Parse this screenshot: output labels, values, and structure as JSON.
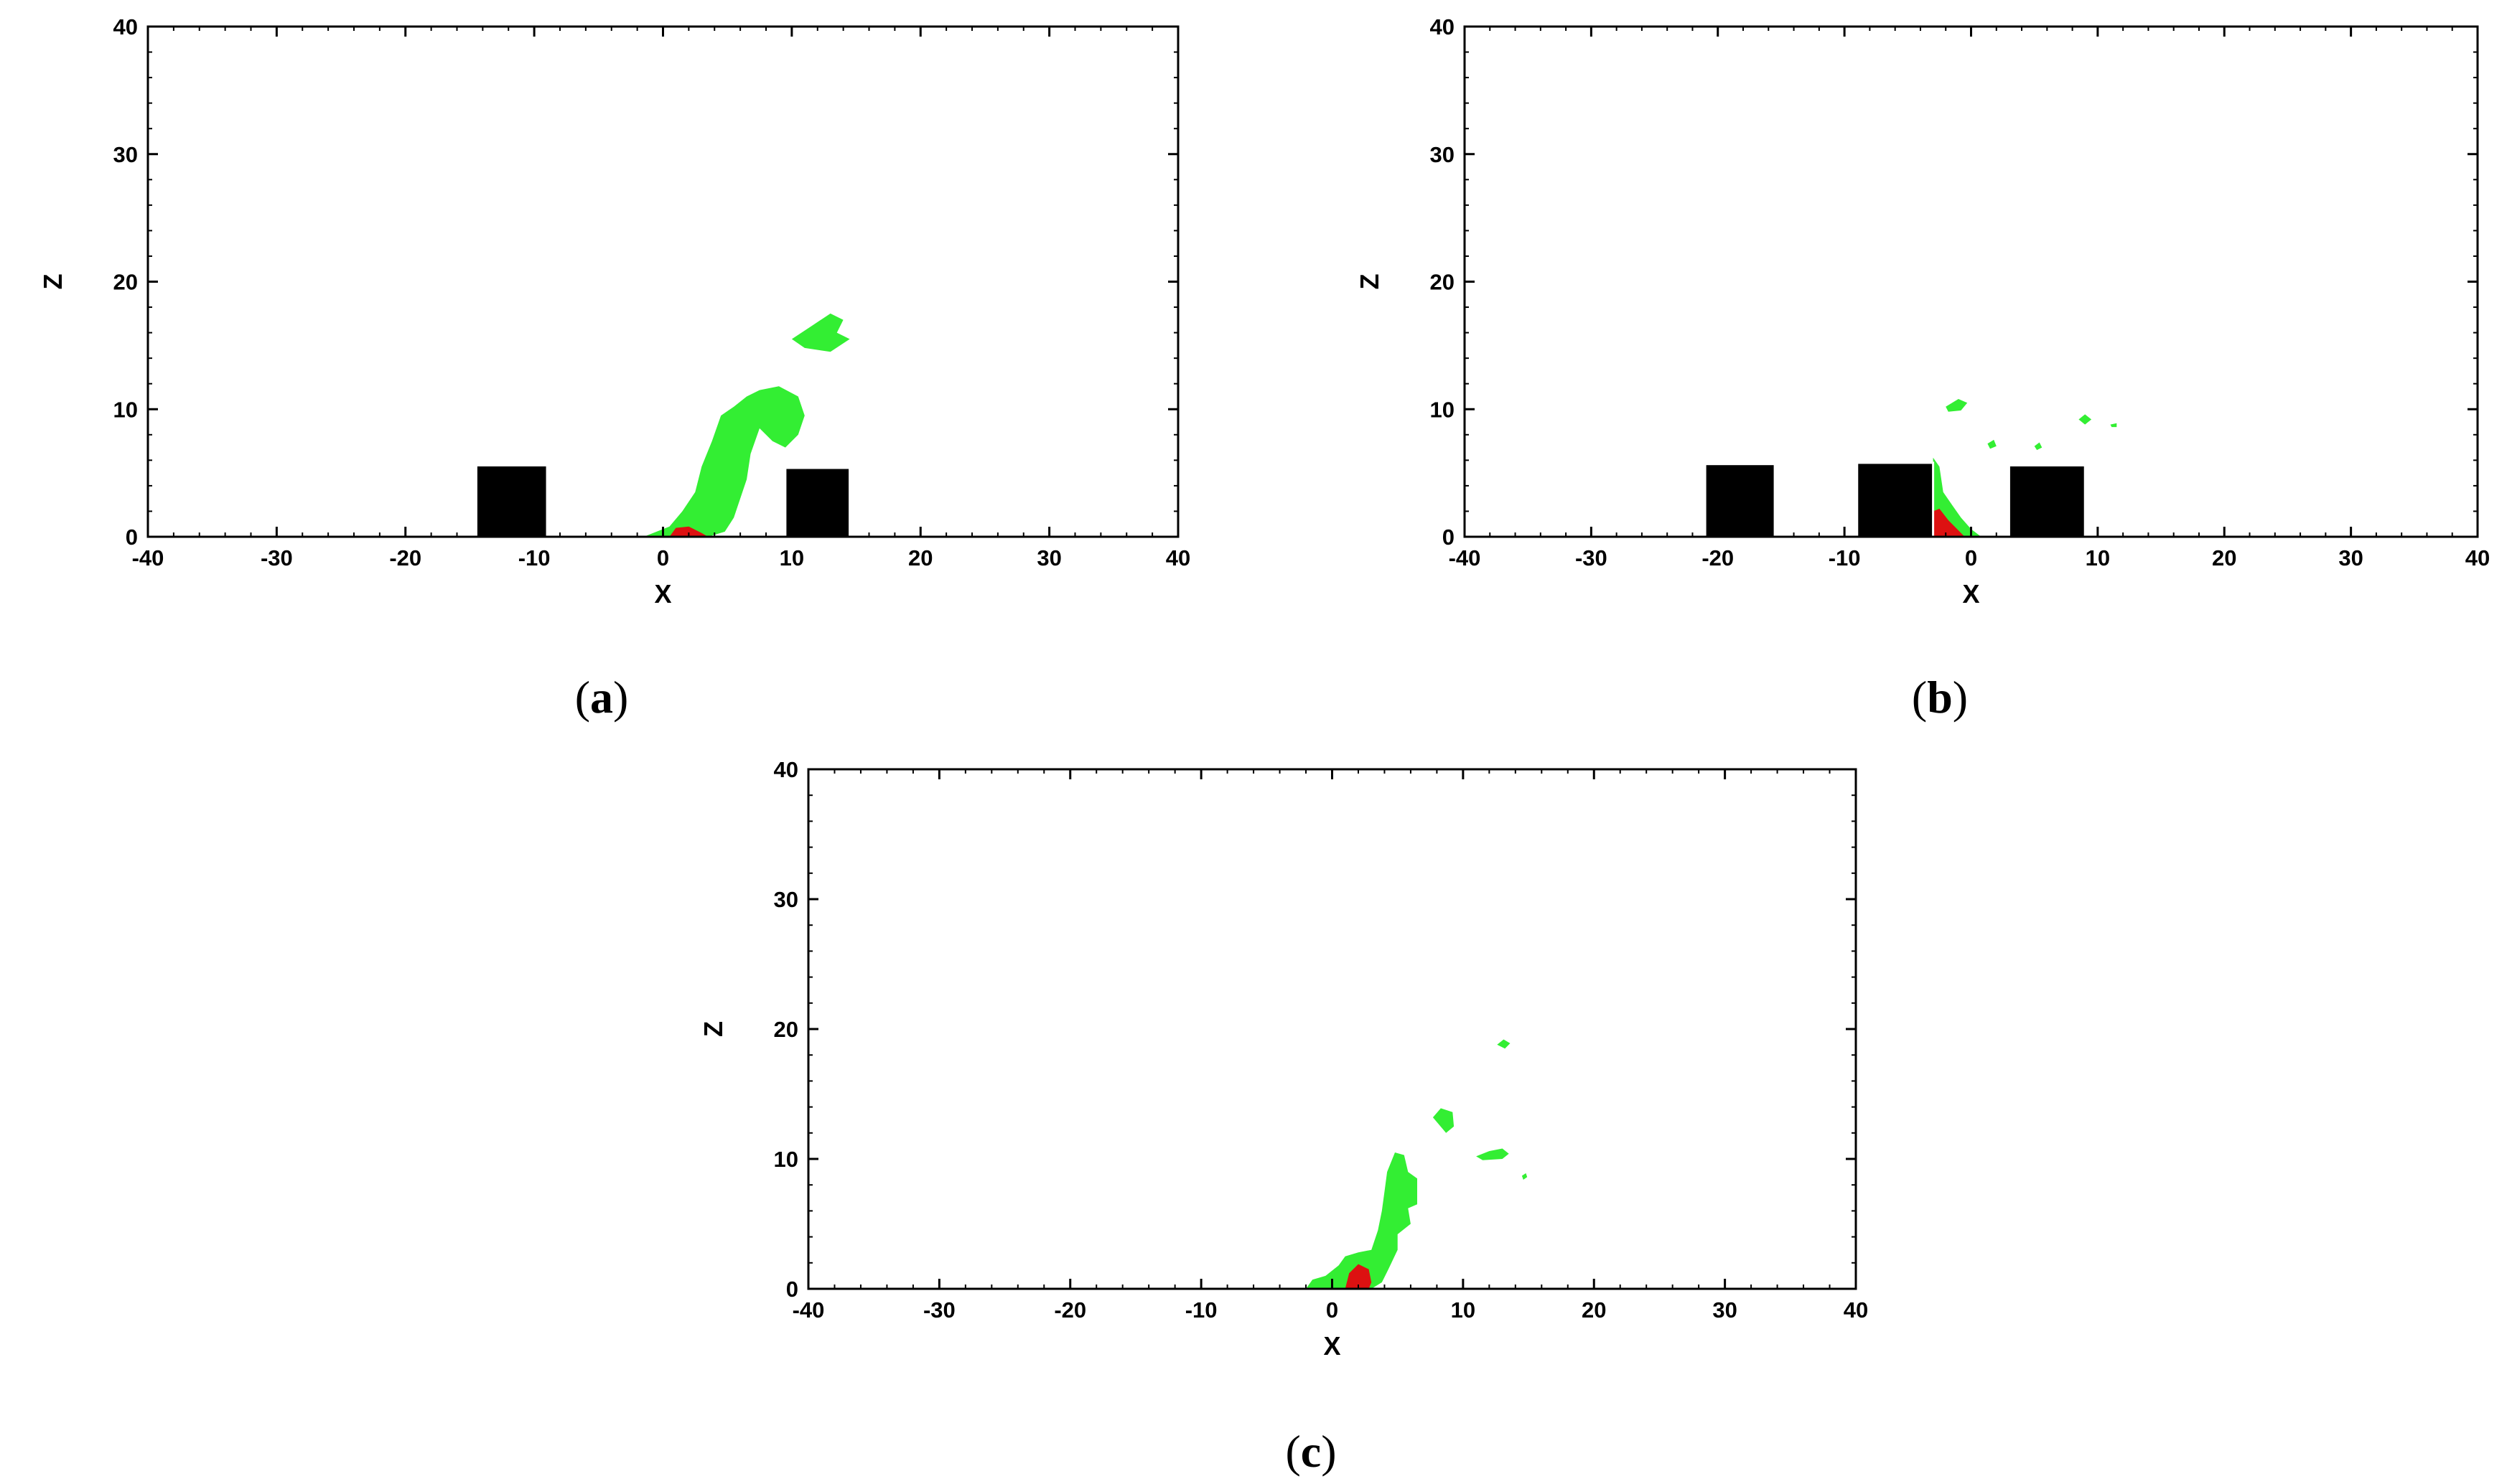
{
  "chart_data": [
    {
      "type": "contour",
      "panel_label": "a",
      "xlabel": "X",
      "ylabel": "Z",
      "xlim": [
        -40,
        40
      ],
      "ylim": [
        0,
        40
      ],
      "xticks": [
        "-40",
        "-30",
        "-20",
        "-10",
        "0",
        "10",
        "20",
        "30",
        "40"
      ],
      "yticks": [
        "0",
        "10",
        "20",
        "30",
        "40"
      ],
      "obstacles": [
        {
          "x0": -14.5,
          "x1": -9,
          "height": 5.6
        },
        {
          "x0": 9.5,
          "x1": 14.5,
          "height": 5.4
        }
      ],
      "regions": [
        {
          "level": "green",
          "points": [
            [
              -1.5,
              0
            ],
            [
              0.5,
              0.8
            ],
            [
              1.5,
              2
            ],
            [
              2.5,
              3.5
            ],
            [
              3,
              5.5
            ],
            [
              3.8,
              7.5
            ],
            [
              4.5,
              9.5
            ],
            [
              5.5,
              10.2
            ],
            [
              6.5,
              11
            ],
            [
              7.5,
              11.5
            ],
            [
              9,
              11.8
            ],
            [
              10.5,
              11
            ],
            [
              11,
              9.5
            ],
            [
              10.5,
              8
            ],
            [
              9.5,
              7
            ],
            [
              8.5,
              7.5
            ],
            [
              7.5,
              8.5
            ],
            [
              6.8,
              6.5
            ],
            [
              6.5,
              4.5
            ],
            [
              6,
              3
            ],
            [
              5.5,
              1.5
            ],
            [
              4.8,
              0.4
            ],
            [
              3.5,
              0
            ]
          ]
        },
        {
          "level": "green",
          "points": [
            [
              10,
              15.5
            ],
            [
              11.5,
              16.5
            ],
            [
              13,
              17.5
            ],
            [
              14,
              17
            ],
            [
              13.5,
              16
            ],
            [
              14.5,
              15.5
            ],
            [
              13,
              14.5
            ],
            [
              11,
              14.8
            ]
          ]
        },
        {
          "level": "red",
          "points": [
            [
              0.5,
              0
            ],
            [
              1,
              0.7
            ],
            [
              2,
              0.8
            ],
            [
              3,
              0.3
            ],
            [
              3.5,
              0
            ]
          ]
        }
      ]
    },
    {
      "type": "contour",
      "panel_label": "b",
      "xlabel": "X",
      "ylabel": "Z",
      "xlim": [
        -40,
        40
      ],
      "ylim": [
        0,
        40
      ],
      "xticks": [
        "-40",
        "-30",
        "-20",
        "-10",
        "0",
        "10",
        "20",
        "30",
        "40"
      ],
      "yticks": [
        "0",
        "10",
        "20",
        "30",
        "40"
      ],
      "obstacles": [
        {
          "x0": -21,
          "x1": -15.5,
          "height": 5.7
        },
        {
          "x0": -9,
          "x1": -3,
          "height": 5.8
        },
        {
          "x0": 3,
          "x1": 9,
          "height": 5.6
        }
      ],
      "regions": [
        {
          "level": "green",
          "points": [
            [
              -3,
              0
            ],
            [
              -3,
              6.2
            ],
            [
              -2.5,
              5.5
            ],
            [
              -2.2,
              3.5
            ],
            [
              -1.5,
              2.5
            ],
            [
              -0.8,
              1.5
            ],
            [
              0,
              0.6
            ],
            [
              0.8,
              0
            ]
          ]
        },
        {
          "level": "green",
          "points": [
            [
              -2,
              10.2
            ],
            [
              -1,
              10.8
            ],
            [
              -0.3,
              10.5
            ],
            [
              -0.8,
              9.9
            ],
            [
              -1.8,
              9.8
            ]
          ]
        },
        {
          "level": "green",
          "points": [
            [
              1.3,
              7.3
            ],
            [
              1.8,
              7.6
            ],
            [
              2,
              7.1
            ],
            [
              1.5,
              6.9
            ]
          ]
        },
        {
          "level": "green",
          "points": [
            [
              5,
              7.1
            ],
            [
              5.4,
              7.4
            ],
            [
              5.6,
              7
            ],
            [
              5.2,
              6.8
            ]
          ]
        },
        {
          "level": "green",
          "points": [
            [
              8.5,
              9.2
            ],
            [
              9,
              9.6
            ],
            [
              9.5,
              9.2
            ],
            [
              9,
              8.8
            ]
          ]
        },
        {
          "level": "green",
          "points": [
            [
              11,
              8.8
            ],
            [
              11.5,
              8.9
            ],
            [
              11.5,
              8.6
            ],
            [
              11.1,
              8.6
            ]
          ]
        },
        {
          "level": "red",
          "points": [
            [
              -3,
              0
            ],
            [
              -3,
              2
            ],
            [
              -2.5,
              2.2
            ],
            [
              -1.8,
              1.3
            ],
            [
              -1,
              0.5
            ],
            [
              -0.5,
              0
            ]
          ]
        }
      ]
    },
    {
      "type": "contour",
      "panel_label": "c",
      "xlabel": "X",
      "ylabel": "Z",
      "xlim": [
        -40,
        40
      ],
      "ylim": [
        0,
        40
      ],
      "xticks": [
        "-40",
        "-30",
        "-20",
        "-10",
        "0",
        "10",
        "20",
        "30",
        "40"
      ],
      "yticks": [
        "0",
        "10",
        "20",
        "30",
        "40"
      ],
      "obstacles": [],
      "regions": [
        {
          "level": "green",
          "points": [
            [
              -2,
              0
            ],
            [
              -1.5,
              0.7
            ],
            [
              -0.5,
              1
            ],
            [
              0.5,
              1.8
            ],
            [
              1,
              2.5
            ],
            [
              2,
              2.8
            ],
            [
              3,
              3
            ],
            [
              3.5,
              4.5
            ],
            [
              3.8,
              6
            ],
            [
              4,
              7.5
            ],
            [
              4.2,
              9
            ],
            [
              4.8,
              10.5
            ],
            [
              5.5,
              10.3
            ],
            [
              5.8,
              9
            ],
            [
              6.5,
              8.5
            ],
            [
              6.5,
              6.5
            ],
            [
              5.8,
              6.2
            ],
            [
              6,
              5
            ],
            [
              5,
              4.2
            ],
            [
              5,
              3
            ],
            [
              4.3,
              1.5
            ],
            [
              3.8,
              0.5
            ],
            [
              3,
              0
            ]
          ]
        },
        {
          "level": "green",
          "points": [
            [
              7.7,
              13.2
            ],
            [
              8.3,
              13.9
            ],
            [
              9.2,
              13.6
            ],
            [
              9.3,
              12.5
            ],
            [
              8.7,
              12
            ],
            [
              8.2,
              12.6
            ]
          ]
        },
        {
          "level": "green",
          "points": [
            [
              11,
              10.2
            ],
            [
              12,
              10.6
            ],
            [
              13,
              10.8
            ],
            [
              13.5,
              10.4
            ],
            [
              13,
              10
            ],
            [
              11.5,
              9.9
            ]
          ]
        },
        {
          "level": "green",
          "points": [
            [
              12.6,
              18.8
            ],
            [
              13.1,
              19.2
            ],
            [
              13.6,
              18.9
            ],
            [
              13.2,
              18.5
            ]
          ]
        },
        {
          "level": "green",
          "points": [
            [
              14.5,
              8.7
            ],
            [
              14.8,
              8.9
            ],
            [
              14.9,
              8.6
            ],
            [
              14.6,
              8.4
            ]
          ]
        },
        {
          "level": "red",
          "points": [
            [
              1,
              0
            ],
            [
              1.3,
              1.2
            ],
            [
              2,
              1.9
            ],
            [
              2.8,
              1.5
            ],
            [
              3,
              0.5
            ],
            [
              2.8,
              0
            ]
          ]
        }
      ]
    }
  ],
  "colors": {
    "green": "#33ee33",
    "red": "#dd1111",
    "obstacle": "#000000",
    "axis": "#000000"
  }
}
